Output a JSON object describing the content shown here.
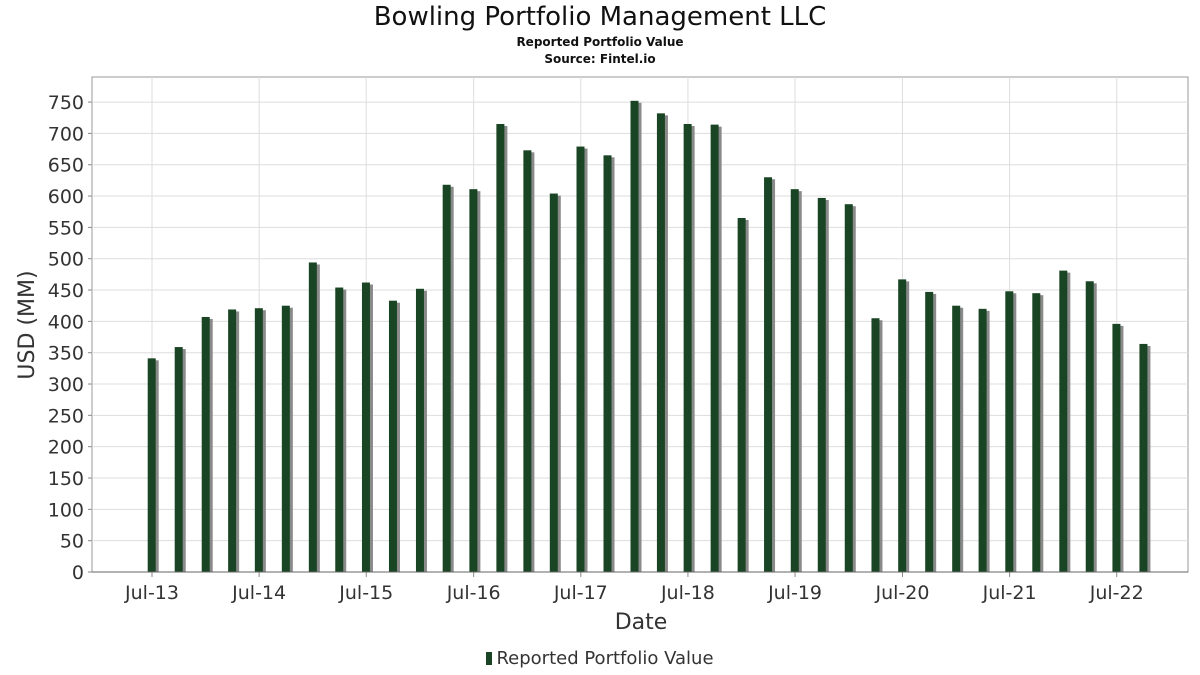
{
  "chart_data": {
    "type": "bar",
    "title": "Bowling Portfolio Management LLC",
    "subtitle": "Reported Portfolio Value",
    "source": "Source: Fintel.io",
    "xlabel": "Date",
    "ylabel": "USD (MM)",
    "ylim": [
      0,
      790
    ],
    "yticks": [
      0,
      50,
      100,
      150,
      200,
      250,
      300,
      350,
      400,
      450,
      500,
      550,
      600,
      650,
      700,
      750
    ],
    "xticks": [
      "Jul-13",
      "Jul-14",
      "Jul-15",
      "Jul-16",
      "Jul-17",
      "Jul-18",
      "Jul-19",
      "Jul-20",
      "Jul-21",
      "Jul-22"
    ],
    "grid": true,
    "legend_position": "bottom",
    "colors": {
      "bar": "#1a4524",
      "bar_shadow": "#8a8a8a",
      "grid": "#dddddd"
    },
    "series": [
      {
        "name": "Reported Portfolio Value",
        "x": [
          "2013-06-30",
          "2013-09-30",
          "2013-12-31",
          "2014-03-31",
          "2014-06-30",
          "2014-09-30",
          "2014-12-31",
          "2015-03-31",
          "2015-06-30",
          "2015-09-30",
          "2015-12-31",
          "2016-03-31",
          "2016-06-30",
          "2016-09-30",
          "2016-12-31",
          "2017-03-31",
          "2017-06-30",
          "2017-09-30",
          "2017-12-31",
          "2018-03-31",
          "2018-06-30",
          "2018-09-30",
          "2018-12-31",
          "2019-03-31",
          "2019-06-30",
          "2019-09-30",
          "2019-12-31",
          "2020-03-31",
          "2020-06-30",
          "2020-09-30",
          "2020-12-31",
          "2021-03-31",
          "2021-06-30",
          "2021-09-30",
          "2021-12-31",
          "2022-03-31",
          "2022-06-30",
          "2022-09-30"
        ],
        "values": [
          341,
          359,
          407,
          419,
          421,
          425,
          494,
          454,
          462,
          433,
          452,
          618,
          611,
          715,
          673,
          604,
          679,
          665,
          752,
          732,
          715,
          714,
          565,
          630,
          611,
          597,
          587,
          405,
          467,
          447,
          425,
          420,
          448,
          445,
          481,
          464,
          396,
          364
        ]
      }
    ]
  }
}
